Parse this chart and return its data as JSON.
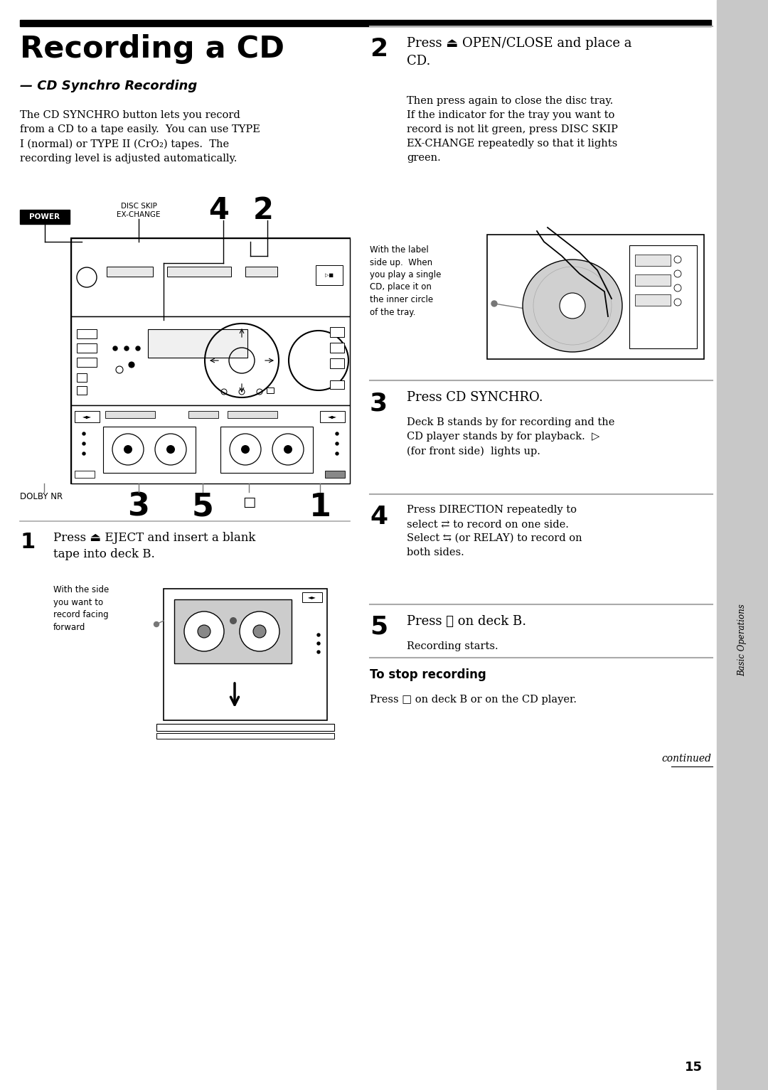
{
  "bg_color": "#ffffff",
  "sidebar_color": "#c8c8c8",
  "page_width": 10.8,
  "page_height": 15.33,
  "title": "Recording a CD",
  "subtitle": "— CD Synchro Recording",
  "intro_text": "The CD SYNCHRO button lets you record\nfrom a CD to a tape easily.  You can use TYPE\nI (normal) or TYPE II (CrO₂) tapes.  The\nrecording level is adjusted automatically.",
  "step1_num": "1",
  "step1_text": "Press ⏏ EJECT and insert a blank\ntape into deck B.",
  "step1_sub": "With the side\nyou want to\nrecord facing\nforward",
  "step2_num": "2",
  "step2_text": "Press ⏏ OPEN/CLOSE and place a\nCD.",
  "step2_sub1": "Then press again to close the disc tray.\nIf the indicator for the tray you want to\nrecord is not lit green, press DISC SKIP\nEX-CHANGE repeatedly so that it lights\ngreen.",
  "step2_sub2": "With the label\nside up.  When\nyou play a single\nCD, place it on\nthe inner circle\nof the tray.",
  "step3_num": "3",
  "step3_text": "Press CD SYNCHRO.",
  "step3_sub": "Deck B stands by for recording and the\nCD player stands by for playback.  ▷\n(for front side)  lights up.",
  "step4_num": "4",
  "step4_text": "Press DIRECTION repeatedly to\nselect ⇄ to record on one side.\nSelect ⇆ (or RELAY) to record on\nboth sides.",
  "step5_num": "5",
  "step5_text": "Press ⏸ on deck B.",
  "step5_sub": "Recording starts.",
  "stop_title": "To stop recording",
  "stop_text": "Press □ on deck B or on the CD player.",
  "footer": "continued",
  "page_num": "15",
  "label_power": "POWER",
  "label_disc_skip": "DISC SKIP\nEX-CHANGE",
  "label_num4": "4",
  "label_num2": "2",
  "label_dolby": "DOLBY NR",
  "label_num3": "3",
  "label_num5": "5",
  "label_stop_sq": "□",
  "label_num1": "1",
  "divider_color": "#aaaaaa",
  "sidebar_text": "Basic Operations"
}
